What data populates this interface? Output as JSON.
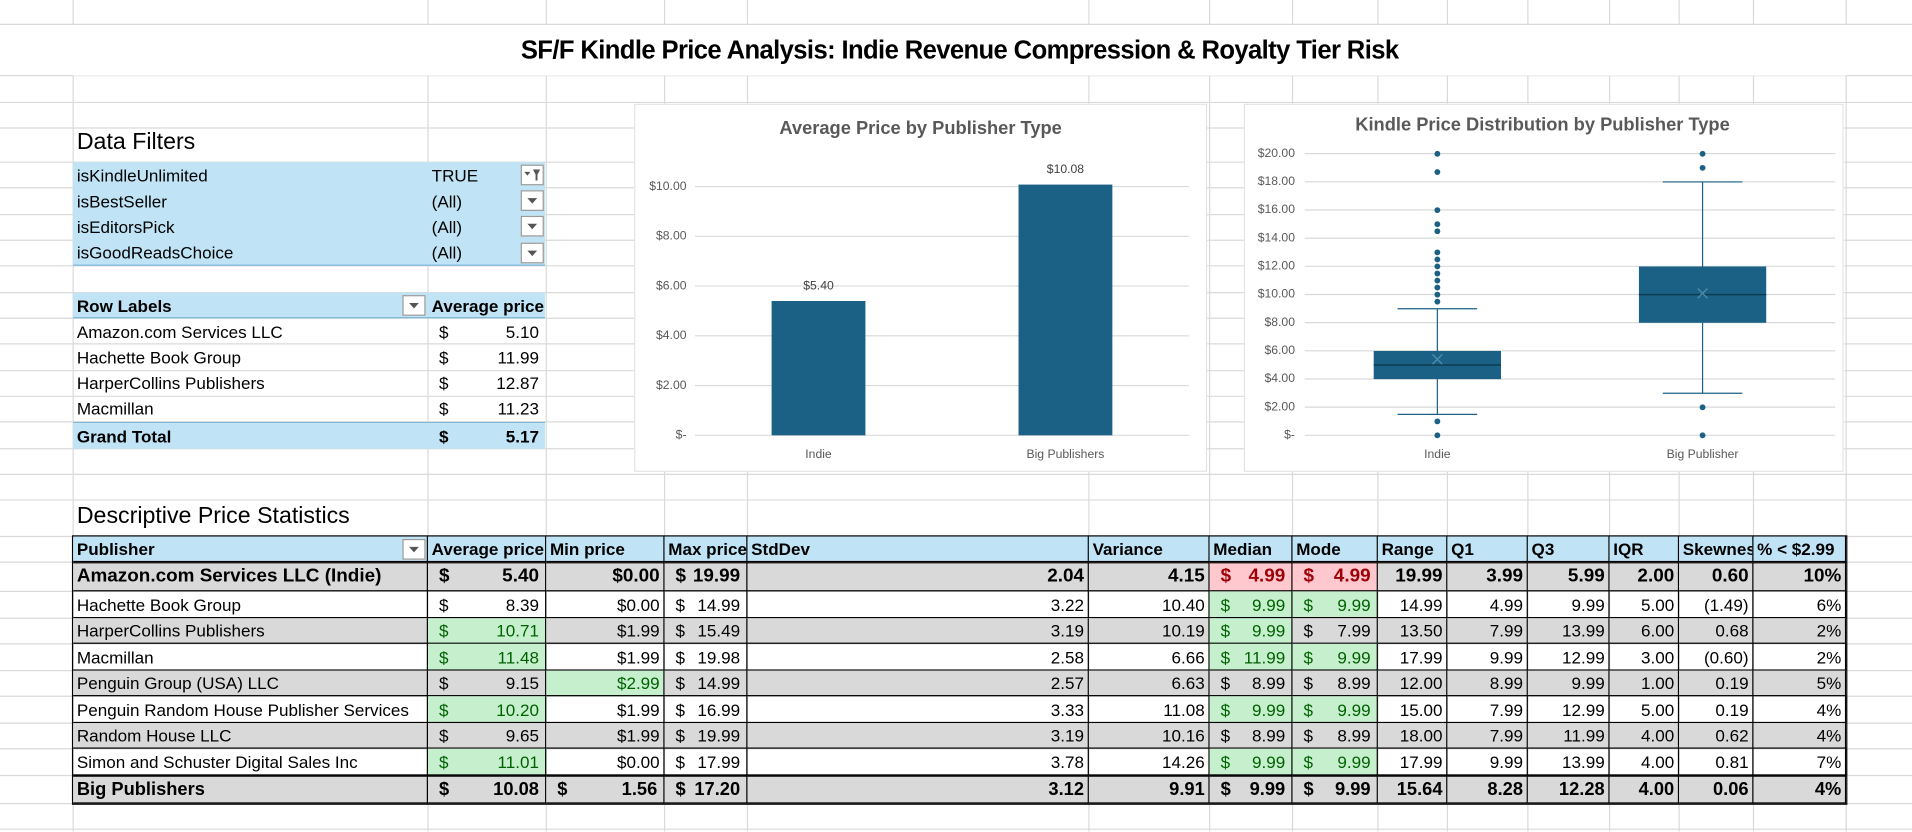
{
  "title": "SF/F Kindle Price Analysis: Indie Revenue Compression & Royalty Tier Risk",
  "filters": {
    "heading": "Data Filters",
    "rows": [
      [
        "isKindleUnlimited",
        "TRUE"
      ],
      [
        "isBestSeller",
        "(All)"
      ],
      [
        "isEditorsPick",
        "(All)"
      ],
      [
        "isGoodReadsChoice",
        "(All)"
      ]
    ]
  },
  "pivot": {
    "header": [
      "Row Labels",
      "Average price"
    ],
    "rows": [
      [
        "Amazon.com Services LLC",
        [
          "$",
          "5.10"
        ]
      ],
      [
        "Hachette Book Group",
        [
          "$",
          "11.99"
        ]
      ],
      [
        "HarperCollins Publishers",
        [
          "$",
          "12.87"
        ]
      ],
      [
        "Macmillan",
        [
          "$",
          "11.23"
        ]
      ]
    ],
    "total": [
      "Grand Total",
      [
        "$",
        "5.17"
      ]
    ]
  },
  "stats": {
    "heading": "Descriptive Price Statistics",
    "header": [
      "Publisher",
      "Average price",
      "Min price",
      "Max price",
      "StdDev",
      "Variance",
      "Median",
      "Mode",
      "Range",
      "Q1",
      "Q3",
      "IQR",
      "Skewnes",
      "% < $2.99"
    ],
    "rows": [
      [
        "Amazon.com Services LLC (Indie)",
        [
          "$",
          "5.40"
        ],
        "$0.00",
        [
          "$",
          "19.99"
        ],
        "2.04",
        "4.15",
        [
          "$",
          "4.99"
        ],
        [
          "$",
          "4.99"
        ],
        "19.99",
        "3.99",
        "5.99",
        "2.00",
        "0.60",
        "10%"
      ],
      [
        "Hachette Book Group",
        [
          "$",
          "8.39"
        ],
        "$0.00",
        [
          "$",
          "14.99"
        ],
        "3.22",
        "10.40",
        [
          "$",
          "9.99"
        ],
        [
          "$",
          "9.99"
        ],
        "14.99",
        "4.99",
        "9.99",
        "5.00",
        "(1.49)",
        "6%"
      ],
      [
        "HarperCollins Publishers",
        [
          "$",
          "10.71"
        ],
        "$1.99",
        [
          "$",
          "15.49"
        ],
        "3.19",
        "10.19",
        [
          "$",
          "9.99"
        ],
        [
          "$",
          "7.99"
        ],
        "13.50",
        "7.99",
        "13.99",
        "6.00",
        "0.68",
        "2%"
      ],
      [
        "Macmillan",
        [
          "$",
          "11.48"
        ],
        "$1.99",
        [
          "$",
          "19.98"
        ],
        "2.58",
        "6.66",
        [
          "$",
          "11.99"
        ],
        [
          "$",
          "9.99"
        ],
        "17.99",
        "9.99",
        "12.99",
        "3.00",
        "(0.60)",
        "2%"
      ],
      [
        "Penguin Group (USA) LLC",
        [
          "$",
          "9.15"
        ],
        "$2.99",
        [
          "$",
          "14.99"
        ],
        "2.57",
        "6.63",
        [
          "$",
          "8.99"
        ],
        [
          "$",
          "8.99"
        ],
        "12.00",
        "8.99",
        "9.99",
        "1.00",
        "0.19",
        "5%"
      ],
      [
        "Penguin Random House Publisher Services",
        [
          "$",
          "10.20"
        ],
        "$1.99",
        [
          "$",
          "16.99"
        ],
        "3.33",
        "11.08",
        [
          "$",
          "9.99"
        ],
        [
          "$",
          "9.99"
        ],
        "15.00",
        "7.99",
        "12.99",
        "5.00",
        "0.19",
        "4%"
      ],
      [
        "Random House LLC",
        [
          "$",
          "9.65"
        ],
        "$1.99",
        [
          "$",
          "19.99"
        ],
        "3.19",
        "10.16",
        [
          "$",
          "8.99"
        ],
        [
          "$",
          "8.99"
        ],
        "18.00",
        "7.99",
        "11.99",
        "4.00",
        "0.62",
        "4%"
      ],
      [
        "Simon and Schuster Digital Sales Inc",
        [
          "$",
          "11.01"
        ],
        "$0.00",
        [
          "$",
          "17.99"
        ],
        "3.78",
        "14.26",
        [
          "$",
          "9.99"
        ],
        [
          "$",
          "9.99"
        ],
        "17.99",
        "9.99",
        "13.99",
        "4.00",
        "0.81",
        "7%"
      ],
      [
        "Big Publishers",
        [
          "$",
          "10.08"
        ],
        [
          "$",
          "1.56"
        ],
        [
          "$",
          "17.20"
        ],
        "3.12",
        "9.91",
        [
          "$",
          "9.99"
        ],
        [
          "$",
          "9.99"
        ],
        "15.64",
        "8.28",
        "12.28",
        "4.00",
        "0.06",
        "4%"
      ]
    ]
  },
  "chart_data": [
    {
      "type": "bar",
      "title": "Average Price by Publisher Type",
      "categories": [
        "Indie",
        "Big Publishers"
      ],
      "values": [
        5.4,
        10.08
      ],
      "value_labels": [
        "$5.40",
        "$10.08"
      ],
      "color": "#1b6185",
      "ylim": [
        0,
        11
      ],
      "yticks": [
        {
          "value": 0,
          "label": "$-"
        },
        {
          "value": 2,
          "label": "$2.00"
        },
        {
          "value": 4,
          "label": "$4.00"
        },
        {
          "value": 6,
          "label": "$6.00"
        },
        {
          "value": 8,
          "label": "$8.00"
        },
        {
          "value": 10,
          "label": "$10.00"
        }
      ],
      "grid": true
    },
    {
      "type": "box",
      "title": "Kindle Price Distribution by Publisher Type",
      "categories": [
        "Indie",
        "Big Publisher"
      ],
      "color": "#1b6185",
      "ylim": [
        0,
        20
      ],
      "yticks": [
        {
          "value": 0,
          "label": "$-"
        },
        {
          "value": 2,
          "label": "$2.00"
        },
        {
          "value": 4,
          "label": "$4.00"
        },
        {
          "value": 6,
          "label": "$6.00"
        },
        {
          "value": 8,
          "label": "$8.00"
        },
        {
          "value": 10,
          "label": "$10.00"
        },
        {
          "value": 12,
          "label": "$12.00"
        },
        {
          "value": 14,
          "label": "$14.00"
        },
        {
          "value": 16,
          "label": "$16.00"
        },
        {
          "value": 18,
          "label": "$18.00"
        },
        {
          "value": 20,
          "label": "$20.00"
        }
      ],
      "grid": true,
      "boxes": [
        {
          "whisker_low": 1.49,
          "q1": 3.99,
          "median": 4.99,
          "q3": 5.99,
          "whisker_high": 8.99,
          "mean": 5.4,
          "outliers": [
            0,
            0.99,
            9.49,
            9.99,
            10.49,
            10.99,
            11.49,
            11.99,
            12.49,
            12.99,
            14.49,
            14.99,
            15.99,
            18.69,
            19.99
          ]
        },
        {
          "whisker_low": 2.99,
          "q1": 7.99,
          "median": 9.99,
          "q3": 11.99,
          "whisker_high": 17.99,
          "mean": 10.08,
          "outliers": [
            0,
            1.99,
            18.99,
            19.99
          ]
        }
      ]
    }
  ]
}
